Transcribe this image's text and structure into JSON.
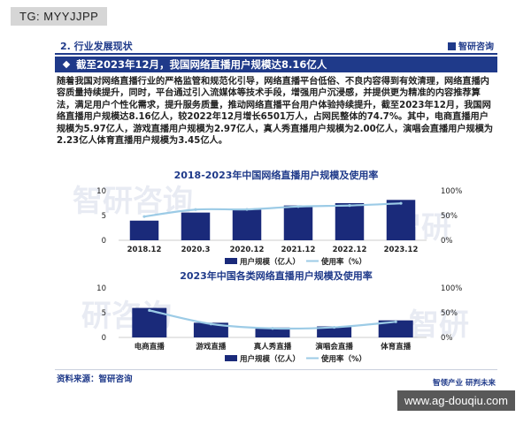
{
  "overlay_tag": "TG: MYYJJPP",
  "watermark_url": "www.ag-douqiu.com",
  "header": {
    "section": "2. 行业发展现状",
    "brand": "智研咨询"
  },
  "banner": {
    "text": "截至2023年12月，我国网络直播用户规模达8.16亿人"
  },
  "paragraph": "随着我国对网络直播行业的严格监管和规范化引导，网络直播平台低俗、不良内容得到有效清理，网络直播内容质量持续提升，同时，平台通过引入流媒体等技术手段，增强用户沉浸感，并提供更为精准的内容推荐算法，满足用户个性化需求，提升服务质量，推动网络直播平台用户体验持续提升，截至2023年12月，我国网络直播用户规模达8.16亿人，较2022年12月增长6501万人，占网民整体的74.7%。其中，电商直播用户规模为5.97亿人，游戏直播用户规模为2.97亿人，真人秀直播用户规模为2.00亿人，演唱会直播用户规模为2.23亿人体育直播用户规模为3.45亿人。",
  "footer": {
    "source": "资料来源：智研咨询",
    "slogan": "智领产业 研判未来"
  },
  "colors": {
    "bar": "#1a2a7a",
    "line": "#9ccbe6",
    "accent": "#1f3a8a"
  },
  "chart_data": [
    {
      "type": "bar",
      "title": "2018-2023年中国网络直播用户规模及使用率",
      "categories": [
        "2018.12",
        "2020.3",
        "2020.12",
        "2021.12",
        "2022.12",
        "2023.12"
      ],
      "ylim": [
        0,
        10
      ],
      "y_ticks": [
        "0",
        "5",
        "10"
      ],
      "y2lim": [
        0,
        100
      ],
      "y2_ticks": [
        "0%",
        "50%",
        "100%"
      ],
      "series": [
        {
          "name": "用户规模（亿人）",
          "type": "bar",
          "values": [
            3.97,
            5.6,
            6.17,
            7.03,
            7.51,
            8.16
          ]
        },
        {
          "name": "使用率（%）",
          "type": "line",
          "axis": "right",
          "values": [
            47.9,
            62.0,
            62.4,
            68.2,
            70.3,
            74.7
          ]
        }
      ],
      "legend": "bottom"
    },
    {
      "type": "bar",
      "title": "2023年中国各类网络直播用户规模及使用率",
      "categories": [
        "电商直播",
        "游戏直播",
        "真人秀直播",
        "演唱会直播",
        "体育直播"
      ],
      "ylim": [
        0,
        10
      ],
      "y_ticks": [
        "0",
        "5",
        "10"
      ],
      "y2lim": [
        0,
        100
      ],
      "y2_ticks": [
        "0%",
        "50%",
        "100%"
      ],
      "series": [
        {
          "name": "用户规模（亿人）",
          "type": "bar",
          "values": [
            5.97,
            2.97,
            2.0,
            2.23,
            3.45
          ]
        },
        {
          "name": "使用率（%）",
          "type": "line",
          "axis": "right",
          "values": [
            54.7,
            27.2,
            18.3,
            20.4,
            31.6
          ]
        }
      ],
      "legend": "bottom"
    }
  ]
}
